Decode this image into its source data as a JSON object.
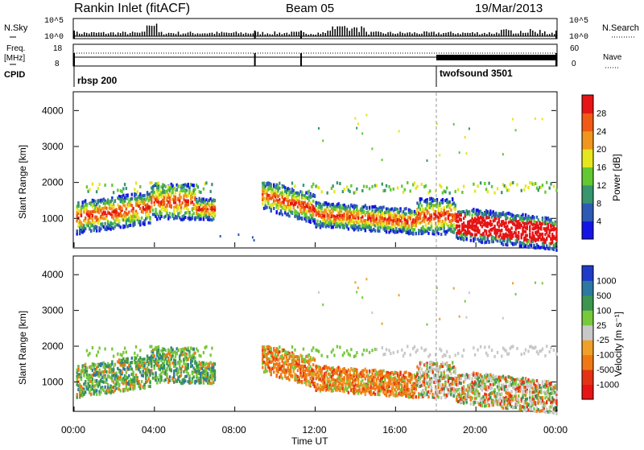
{
  "header": {
    "station": "Rankin Inlet (fitACF)",
    "beam": "Beam 05",
    "date": "19/Mar/2013"
  },
  "panel_labels": {
    "nsky": "N.Sky",
    "nsky_top": "10^5",
    "nsky_bottom": "10^0",
    "nsearch": "N.Search",
    "nsearch_top": "10^5",
    "nsearch_bottom": "10^0",
    "freq_label_1": "Freq.",
    "freq_label_2": "[MHz]",
    "freq_top": "18",
    "freq_bottom": "8",
    "nave": "Nave",
    "nave_top": "60",
    "nave_bottom": "0",
    "cpid": "CPID",
    "cpid_1": "rbsp 200",
    "cpid_2": "twofsound 3501"
  },
  "axes": {
    "ylabel": "Slant Range [km]",
    "xlabel": "Time UT",
    "yticks": [
      "1000",
      "2000",
      "3000",
      "4000"
    ],
    "xticks": [
      "00:00",
      "04:00",
      "08:00",
      "12:00",
      "16:00",
      "20:00",
      "00:00"
    ]
  },
  "power_scale": {
    "label": "Power [dB]",
    "ticks": [
      "4",
      "8",
      "12",
      "16",
      "20",
      "24",
      "28"
    ],
    "colors": [
      "#1414e6",
      "#2d5ab4",
      "#37966e",
      "#64c832",
      "#e6e61e",
      "#f0961e",
      "#f05a14",
      "#e61414"
    ]
  },
  "velocity_scale": {
    "label": "Velocity [m s⁻¹]",
    "ticks": [
      "1000",
      "500",
      "100",
      "25",
      "-25",
      "-100",
      "-500",
      "-1000"
    ],
    "colors": [
      "#1e3cc8",
      "#2d78a0",
      "#3c9650",
      "#78c83c",
      "#c8c8c8",
      "#f0a028",
      "#f07814",
      "#e63214",
      "#e61414"
    ]
  },
  "chart_data": {
    "type": "heatmap",
    "x_range_hours": [
      0,
      24
    ],
    "y_range_km": [
      200,
      4500
    ],
    "cpid_switch_time": "18:00"
  }
}
